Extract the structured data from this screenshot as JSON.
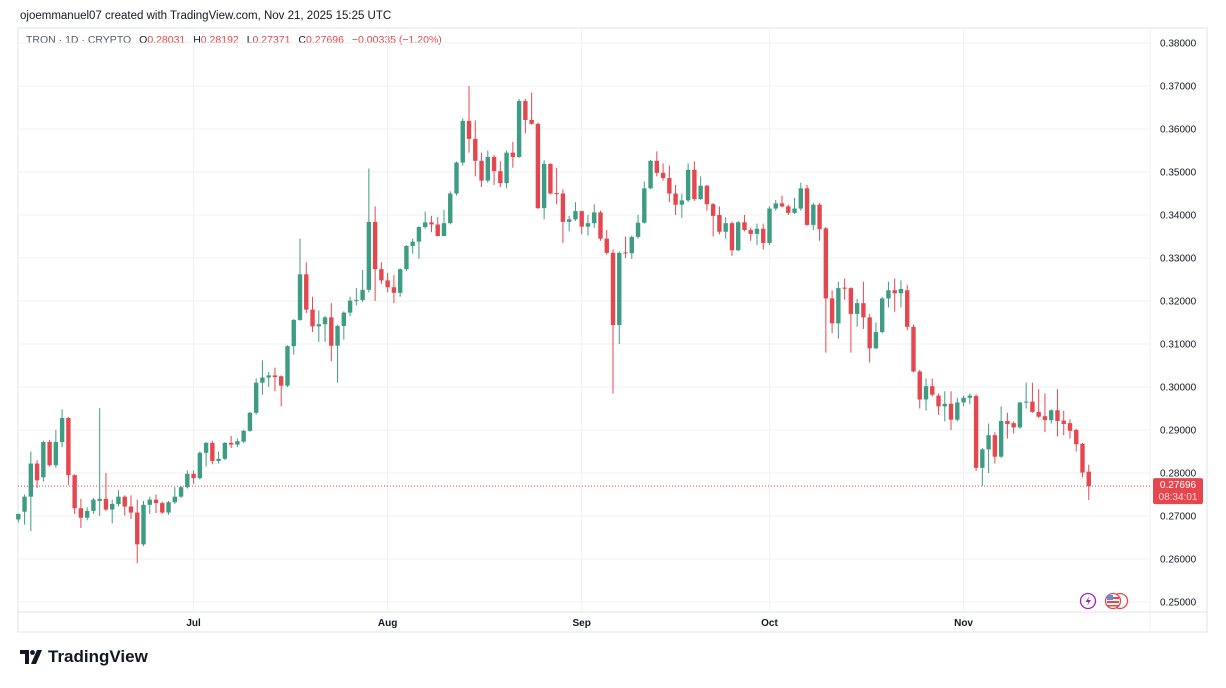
{
  "credit": "ojoemmanuel07 created with TradingView.com, Nov 21, 2025 15:25 UTC",
  "legend": {
    "symbol": "TRON · 1D · CRYPTO",
    "o_label": "O",
    "o": "0.28031",
    "h_label": "H",
    "h": "0.28192",
    "l_label": "L",
    "l": "0.27371",
    "c_label": "C",
    "c": "0.27696",
    "change": "−0.00335 (−1.20%)"
  },
  "last_price": {
    "value": "0.27696",
    "countdown": "08:34:01"
  },
  "brand": "TradingView",
  "icons": [
    "lightning-icon",
    "us-flag-icon"
  ],
  "colors": {
    "up": "#3f9c84",
    "down": "#e5474f",
    "grid": "#f0f1f3",
    "text": "#131722"
  },
  "chart_data": {
    "type": "candlestick",
    "title": "TRON · 1D · CRYPTO",
    "ylim": [
      0.245,
      0.3835
    ],
    "yticks": [
      "0.25000",
      "0.26000",
      "0.27000",
      "0.28000",
      "0.29000",
      "0.30000",
      "0.31000",
      "0.32000",
      "0.33000",
      "0.34000",
      "0.35000",
      "0.36000",
      "0.37000",
      "0.38000"
    ],
    "xticks": [
      {
        "label": "Jul",
        "index": 28
      },
      {
        "label": "Aug",
        "index": 59
      },
      {
        "label": "Sep",
        "index": 90
      },
      {
        "label": "Oct",
        "index": 120
      },
      {
        "label": "Nov",
        "index": 151
      }
    ],
    "grid": true,
    "ohlc_fields": [
      "open",
      "high",
      "low",
      "close"
    ],
    "candles": [
      [
        0.2692,
        0.2705,
        0.2685,
        0.2705
      ],
      [
        0.271,
        0.275,
        0.268,
        0.2745
      ],
      [
        0.2745,
        0.285,
        0.2665,
        0.2822
      ],
      [
        0.2822,
        0.283,
        0.2765,
        0.2783
      ],
      [
        0.279,
        0.2875,
        0.278,
        0.2872
      ],
      [
        0.2872,
        0.2877,
        0.2815,
        0.2818
      ],
      [
        0.2818,
        0.29,
        0.2812,
        0.2872
      ],
      [
        0.2872,
        0.2948,
        0.286,
        0.2928
      ],
      [
        0.2928,
        0.293,
        0.2772,
        0.2795
      ],
      [
        0.2795,
        0.2797,
        0.2705,
        0.2718
      ],
      [
        0.2718,
        0.274,
        0.2672,
        0.2696
      ],
      [
        0.2696,
        0.272,
        0.269,
        0.2712
      ],
      [
        0.2712,
        0.2742,
        0.2705,
        0.2738
      ],
      [
        0.2735,
        0.2951,
        0.27,
        0.274
      ],
      [
        0.274,
        0.28,
        0.2712,
        0.2715
      ],
      [
        0.2715,
        0.2738,
        0.2683,
        0.2728
      ],
      [
        0.2728,
        0.276,
        0.2722,
        0.2745
      ],
      [
        0.2745,
        0.2748,
        0.2701,
        0.2722
      ],
      [
        0.2722,
        0.2748,
        0.2693,
        0.2708
      ],
      [
        0.2708,
        0.2738,
        0.259,
        0.2634
      ],
      [
        0.2634,
        0.2735,
        0.263,
        0.2726
      ],
      [
        0.2726,
        0.2745,
        0.2705,
        0.2738
      ],
      [
        0.2738,
        0.275,
        0.2707,
        0.273
      ],
      [
        0.273,
        0.2733,
        0.2705,
        0.2708
      ],
      [
        0.2708,
        0.2735,
        0.2703,
        0.2732
      ],
      [
        0.2732,
        0.2767,
        0.2728,
        0.2745
      ],
      [
        0.2745,
        0.277,
        0.2742,
        0.2767
      ],
      [
        0.2767,
        0.2806,
        0.2764,
        0.2798
      ],
      [
        0.2798,
        0.2806,
        0.2775,
        0.2788
      ],
      [
        0.2788,
        0.285,
        0.2785,
        0.2847
      ],
      [
        0.2847,
        0.2872,
        0.2815,
        0.287
      ],
      [
        0.287,
        0.2875,
        0.282,
        0.2828
      ],
      [
        0.2828,
        0.285,
        0.2822,
        0.2833
      ],
      [
        0.2833,
        0.2872,
        0.283,
        0.287
      ],
      [
        0.287,
        0.2886,
        0.2858,
        0.2866
      ],
      [
        0.2866,
        0.288,
        0.286,
        0.2874
      ],
      [
        0.2873,
        0.29,
        0.287,
        0.2898
      ],
      [
        0.2898,
        0.2942,
        0.2896,
        0.294
      ],
      [
        0.294,
        0.302,
        0.2936,
        0.301
      ],
      [
        0.301,
        0.3062,
        0.2982,
        0.3022
      ],
      [
        0.3022,
        0.3035,
        0.3,
        0.3027
      ],
      [
        0.3027,
        0.3045,
        0.299,
        0.3023
      ],
      [
        0.3025,
        0.3027,
        0.2955,
        0.3003
      ],
      [
        0.3003,
        0.3097,
        0.3,
        0.3095
      ],
      [
        0.3095,
        0.3158,
        0.3075,
        0.3156
      ],
      [
        0.3156,
        0.3345,
        0.3154,
        0.3262
      ],
      [
        0.3262,
        0.329,
        0.3172,
        0.318
      ],
      [
        0.318,
        0.321,
        0.3128,
        0.3141
      ],
      [
        0.3141,
        0.3178,
        0.3105,
        0.3146
      ],
      [
        0.3146,
        0.3165,
        0.3105,
        0.3162
      ],
      [
        0.3162,
        0.3195,
        0.306,
        0.3096
      ],
      [
        0.3096,
        0.3145,
        0.301,
        0.3142
      ],
      [
        0.3142,
        0.3176,
        0.311,
        0.3173
      ],
      [
        0.3173,
        0.321,
        0.3165,
        0.3201
      ],
      [
        0.3201,
        0.323,
        0.319,
        0.3202
      ],
      [
        0.3202,
        0.3272,
        0.3198,
        0.3226
      ],
      [
        0.3226,
        0.3508,
        0.322,
        0.3384
      ],
      [
        0.3384,
        0.342,
        0.32,
        0.3274
      ],
      [
        0.3274,
        0.329,
        0.324,
        0.3248
      ],
      [
        0.3248,
        0.3265,
        0.322,
        0.3232
      ],
      [
        0.3232,
        0.326,
        0.3195,
        0.3219
      ],
      [
        0.3219,
        0.3276,
        0.321,
        0.3274
      ],
      [
        0.3274,
        0.333,
        0.327,
        0.3328
      ],
      [
        0.3328,
        0.3345,
        0.331,
        0.3338
      ],
      [
        0.3338,
        0.3374,
        0.3298,
        0.3372
      ],
      [
        0.3372,
        0.3408,
        0.3368,
        0.3383
      ],
      [
        0.3383,
        0.3398,
        0.336,
        0.3378
      ],
      [
        0.3378,
        0.3395,
        0.3351,
        0.3351
      ],
      [
        0.3351,
        0.3412,
        0.3351,
        0.3381
      ],
      [
        0.3381,
        0.3455,
        0.3378,
        0.345
      ],
      [
        0.345,
        0.3524,
        0.3445,
        0.3522
      ],
      [
        0.3522,
        0.3625,
        0.3515,
        0.3619
      ],
      [
        0.3619,
        0.37,
        0.3545,
        0.3577
      ],
      [
        0.3577,
        0.362,
        0.349,
        0.3526
      ],
      [
        0.3526,
        0.3545,
        0.3465,
        0.348
      ],
      [
        0.348,
        0.355,
        0.3475,
        0.3535
      ],
      [
        0.3535,
        0.354,
        0.347,
        0.3502
      ],
      [
        0.3502,
        0.3525,
        0.3465,
        0.3474
      ],
      [
        0.3474,
        0.355,
        0.3462,
        0.3545
      ],
      [
        0.3545,
        0.357,
        0.351,
        0.3535
      ],
      [
        0.3535,
        0.367,
        0.3533,
        0.3665
      ],
      [
        0.3665,
        0.367,
        0.359,
        0.3621
      ],
      [
        0.3621,
        0.3685,
        0.361,
        0.3612
      ],
      [
        0.3612,
        0.3615,
        0.3414,
        0.3416
      ],
      [
        0.3416,
        0.3527,
        0.339,
        0.3519
      ],
      [
        0.3519,
        0.352,
        0.3448,
        0.345
      ],
      [
        0.3451,
        0.351,
        0.3425,
        0.3449
      ],
      [
        0.345,
        0.346,
        0.3335,
        0.3384
      ],
      [
        0.3384,
        0.3398,
        0.3362,
        0.339
      ],
      [
        0.339,
        0.343,
        0.3386,
        0.3409
      ],
      [
        0.3409,
        0.341,
        0.3355,
        0.3373
      ],
      [
        0.3373,
        0.34,
        0.3352,
        0.3381
      ],
      [
        0.3381,
        0.3425,
        0.337,
        0.3406
      ],
      [
        0.3406,
        0.341,
        0.334,
        0.3345
      ],
      [
        0.3345,
        0.3365,
        0.3308,
        0.3312
      ],
      [
        0.3312,
        0.332,
        0.2985,
        0.3144
      ],
      [
        0.3144,
        0.3315,
        0.31,
        0.3312
      ],
      [
        0.3313,
        0.335,
        0.33,
        0.3311
      ],
      [
        0.3311,
        0.3352,
        0.3298,
        0.3349
      ],
      [
        0.3349,
        0.34,
        0.3345,
        0.3382
      ],
      [
        0.3382,
        0.3478,
        0.338,
        0.3462
      ],
      [
        0.3462,
        0.3528,
        0.346,
        0.3526
      ],
      [
        0.3526,
        0.3548,
        0.349,
        0.3498
      ],
      [
        0.3498,
        0.352,
        0.348,
        0.3486
      ],
      [
        0.3486,
        0.3515,
        0.343,
        0.345
      ],
      [
        0.345,
        0.347,
        0.34,
        0.3424
      ],
      [
        0.3424,
        0.345,
        0.3393,
        0.3434
      ],
      [
        0.3434,
        0.352,
        0.343,
        0.3505
      ],
      [
        0.3505,
        0.3525,
        0.3433,
        0.3437
      ],
      [
        0.3437,
        0.349,
        0.3435,
        0.3468
      ],
      [
        0.3468,
        0.347,
        0.341,
        0.3425
      ],
      [
        0.3425,
        0.3428,
        0.335,
        0.3398
      ],
      [
        0.34,
        0.342,
        0.3355,
        0.3361
      ],
      [
        0.3361,
        0.3395,
        0.3345,
        0.3381
      ],
      [
        0.3381,
        0.3385,
        0.3305,
        0.3318
      ],
      [
        0.3318,
        0.3386,
        0.3316,
        0.3383
      ],
      [
        0.3383,
        0.34,
        0.3362,
        0.3365
      ],
      [
        0.3365,
        0.337,
        0.334,
        0.3356
      ],
      [
        0.3356,
        0.338,
        0.333,
        0.3368
      ],
      [
        0.3368,
        0.338,
        0.332,
        0.3335
      ],
      [
        0.3335,
        0.342,
        0.333,
        0.3415
      ],
      [
        0.3415,
        0.3435,
        0.341,
        0.3427
      ],
      [
        0.3427,
        0.3445,
        0.3418,
        0.342
      ],
      [
        0.342,
        0.3424,
        0.34,
        0.3405
      ],
      [
        0.3405,
        0.344,
        0.3402,
        0.3415
      ],
      [
        0.3415,
        0.3475,
        0.341,
        0.3462
      ],
      [
        0.3462,
        0.347,
        0.3375,
        0.3377
      ],
      [
        0.3377,
        0.3428,
        0.3365,
        0.3424
      ],
      [
        0.3424,
        0.3428,
        0.334,
        0.3367
      ],
      [
        0.3369,
        0.3372,
        0.308,
        0.3206
      ],
      [
        0.3206,
        0.3225,
        0.3125,
        0.3148
      ],
      [
        0.3148,
        0.3245,
        0.3112,
        0.323
      ],
      [
        0.3231,
        0.3252,
        0.3203,
        0.3229
      ],
      [
        0.323,
        0.3232,
        0.308,
        0.317
      ],
      [
        0.317,
        0.3205,
        0.314,
        0.3195
      ],
      [
        0.3195,
        0.3245,
        0.3135,
        0.3162
      ],
      [
        0.3162,
        0.317,
        0.3057,
        0.309
      ],
      [
        0.309,
        0.315,
        0.3088,
        0.3128
      ],
      [
        0.3128,
        0.321,
        0.3125,
        0.3206
      ],
      [
        0.3206,
        0.3245,
        0.3185,
        0.3225
      ],
      [
        0.3225,
        0.3252,
        0.3175,
        0.3218
      ],
      [
        0.3218,
        0.3248,
        0.3185,
        0.3228
      ],
      [
        0.3225,
        0.3237,
        0.3132,
        0.314
      ],
      [
        0.314,
        0.3145,
        0.3034,
        0.3036
      ],
      [
        0.3036,
        0.304,
        0.295,
        0.2971
      ],
      [
        0.2971,
        0.302,
        0.2945,
        0.3002
      ],
      [
        0.3002,
        0.302,
        0.2978,
        0.2982
      ],
      [
        0.298,
        0.2985,
        0.2935,
        0.2955
      ],
      [
        0.2955,
        0.299,
        0.292,
        0.2961
      ],
      [
        0.2961,
        0.299,
        0.29,
        0.2924
      ],
      [
        0.2924,
        0.2975,
        0.292,
        0.2964
      ],
      [
        0.2964,
        0.298,
        0.2955,
        0.2975
      ],
      [
        0.2975,
        0.2985,
        0.296,
        0.298
      ],
      [
        0.2979,
        0.2983,
        0.2805,
        0.2812
      ],
      [
        0.2812,
        0.2858,
        0.277,
        0.2855
      ],
      [
        0.2855,
        0.2915,
        0.28,
        0.2888
      ],
      [
        0.2888,
        0.2895,
        0.2822,
        0.2838
      ],
      [
        0.2838,
        0.2955,
        0.2835,
        0.2921
      ],
      [
        0.2921,
        0.294,
        0.288,
        0.2914
      ],
      [
        0.2916,
        0.292,
        0.2892,
        0.2906
      ],
      [
        0.2906,
        0.2965,
        0.2903,
        0.2964
      ],
      [
        0.2964,
        0.301,
        0.295,
        0.2966
      ],
      [
        0.2966,
        0.301,
        0.294,
        0.2942
      ],
      [
        0.2942,
        0.2995,
        0.2928,
        0.2931
      ],
      [
        0.2932,
        0.2985,
        0.2895,
        0.2923
      ],
      [
        0.2923,
        0.2948,
        0.2915,
        0.2946
      ],
      [
        0.2946,
        0.2995,
        0.2885,
        0.2921
      ],
      [
        0.2922,
        0.2945,
        0.2888,
        0.2914
      ],
      [
        0.2916,
        0.2925,
        0.288,
        0.2898
      ],
      [
        0.29,
        0.2903,
        0.285,
        0.2867
      ],
      [
        0.2868,
        0.287,
        0.279,
        0.2801
      ],
      [
        0.28031,
        0.28192,
        0.27371,
        0.27696
      ]
    ]
  }
}
